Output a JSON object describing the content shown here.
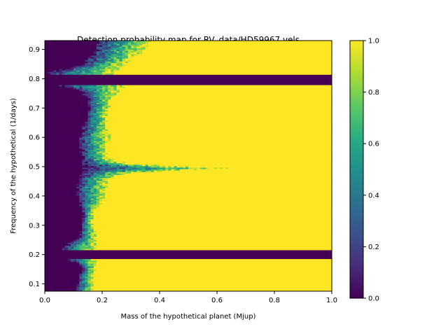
{
  "chart_data": {
    "type": "heatmap",
    "title": "Detection probability map for RV_data/HD59967.vels",
    "xlabel": "Mass of the hypothetical planet (Mjup)",
    "ylabel": "Frequency of the hypothetical (1/days)",
    "xlim": [
      0.0,
      1.0
    ],
    "ylim": [
      0.075,
      0.93
    ],
    "xticks": [
      0.0,
      0.2,
      0.4,
      0.6,
      0.8,
      1.0
    ],
    "xtick_labels": [
      "0.0",
      "0.2",
      "0.4",
      "0.6",
      "0.8",
      "1.0"
    ],
    "yticks": [
      0.1,
      0.2,
      0.3,
      0.4,
      0.5,
      0.6,
      0.7,
      0.8,
      0.9
    ],
    "ytick_labels": [
      "0.1",
      "0.2",
      "0.3",
      "0.4",
      "0.5",
      "0.6",
      "0.7",
      "0.8",
      "0.9"
    ],
    "colormap": "viridis",
    "colorbar": {
      "range": [
        0.0,
        1.0
      ],
      "ticks": [
        0.0,
        0.2,
        0.4,
        0.6,
        0.8,
        1.0
      ],
      "tick_labels": [
        "0.0",
        "0.2",
        "0.4",
        "0.6",
        "0.8",
        "1.0"
      ]
    },
    "zero_probability_bands": [
      {
        "freq_min": 0.185,
        "freq_max": 0.215
      },
      {
        "freq_min": 0.78,
        "freq_max": 0.815
      }
    ],
    "detection_threshold_profile": [
      {
        "freq": 0.08,
        "mass_low": 0.11,
        "mass_high": 0.17
      },
      {
        "freq": 0.12,
        "mass_low": 0.12,
        "mass_high": 0.17
      },
      {
        "freq": 0.16,
        "mass_low": 0.13,
        "mass_high": 0.18
      },
      {
        "freq": 0.185,
        "mass_low": 0.08,
        "mass_high": 0.18
      },
      {
        "freq": 0.22,
        "mass_low": 0.05,
        "mass_high": 0.18
      },
      {
        "freq": 0.26,
        "mass_low": 0.12,
        "mass_high": 0.18
      },
      {
        "freq": 0.3,
        "mass_low": 0.13,
        "mass_high": 0.17
      },
      {
        "freq": 0.34,
        "mass_low": 0.13,
        "mass_high": 0.17
      },
      {
        "freq": 0.38,
        "mass_low": 0.12,
        "mass_high": 0.2
      },
      {
        "freq": 0.42,
        "mass_low": 0.11,
        "mass_high": 0.22
      },
      {
        "freq": 0.46,
        "mass_low": 0.12,
        "mass_high": 0.22
      },
      {
        "freq": 0.48,
        "mass_low": 0.13,
        "mass_high": 0.3
      },
      {
        "freq": 0.495,
        "mass_low": 0.13,
        "mass_high": 0.64
      },
      {
        "freq": 0.51,
        "mass_low": 0.13,
        "mass_high": 0.3
      },
      {
        "freq": 0.53,
        "mass_low": 0.13,
        "mass_high": 0.22
      },
      {
        "freq": 0.57,
        "mass_low": 0.12,
        "mass_high": 0.22
      },
      {
        "freq": 0.61,
        "mass_low": 0.12,
        "mass_high": 0.23
      },
      {
        "freq": 0.65,
        "mass_low": 0.14,
        "mass_high": 0.22
      },
      {
        "freq": 0.69,
        "mass_low": 0.15,
        "mass_high": 0.22
      },
      {
        "freq": 0.73,
        "mass_low": 0.15,
        "mass_high": 0.24
      },
      {
        "freq": 0.76,
        "mass_low": 0.12,
        "mass_high": 0.26
      },
      {
        "freq": 0.775,
        "mass_low": 0.05,
        "mass_high": 0.28
      },
      {
        "freq": 0.82,
        "mass_low": 0.0,
        "mass_high": 0.25
      },
      {
        "freq": 0.85,
        "mass_low": 0.13,
        "mass_high": 0.28
      },
      {
        "freq": 0.88,
        "mass_low": 0.16,
        "mass_high": 0.33
      },
      {
        "freq": 0.93,
        "mass_low": 0.19,
        "mass_high": 0.37
      }
    ]
  }
}
